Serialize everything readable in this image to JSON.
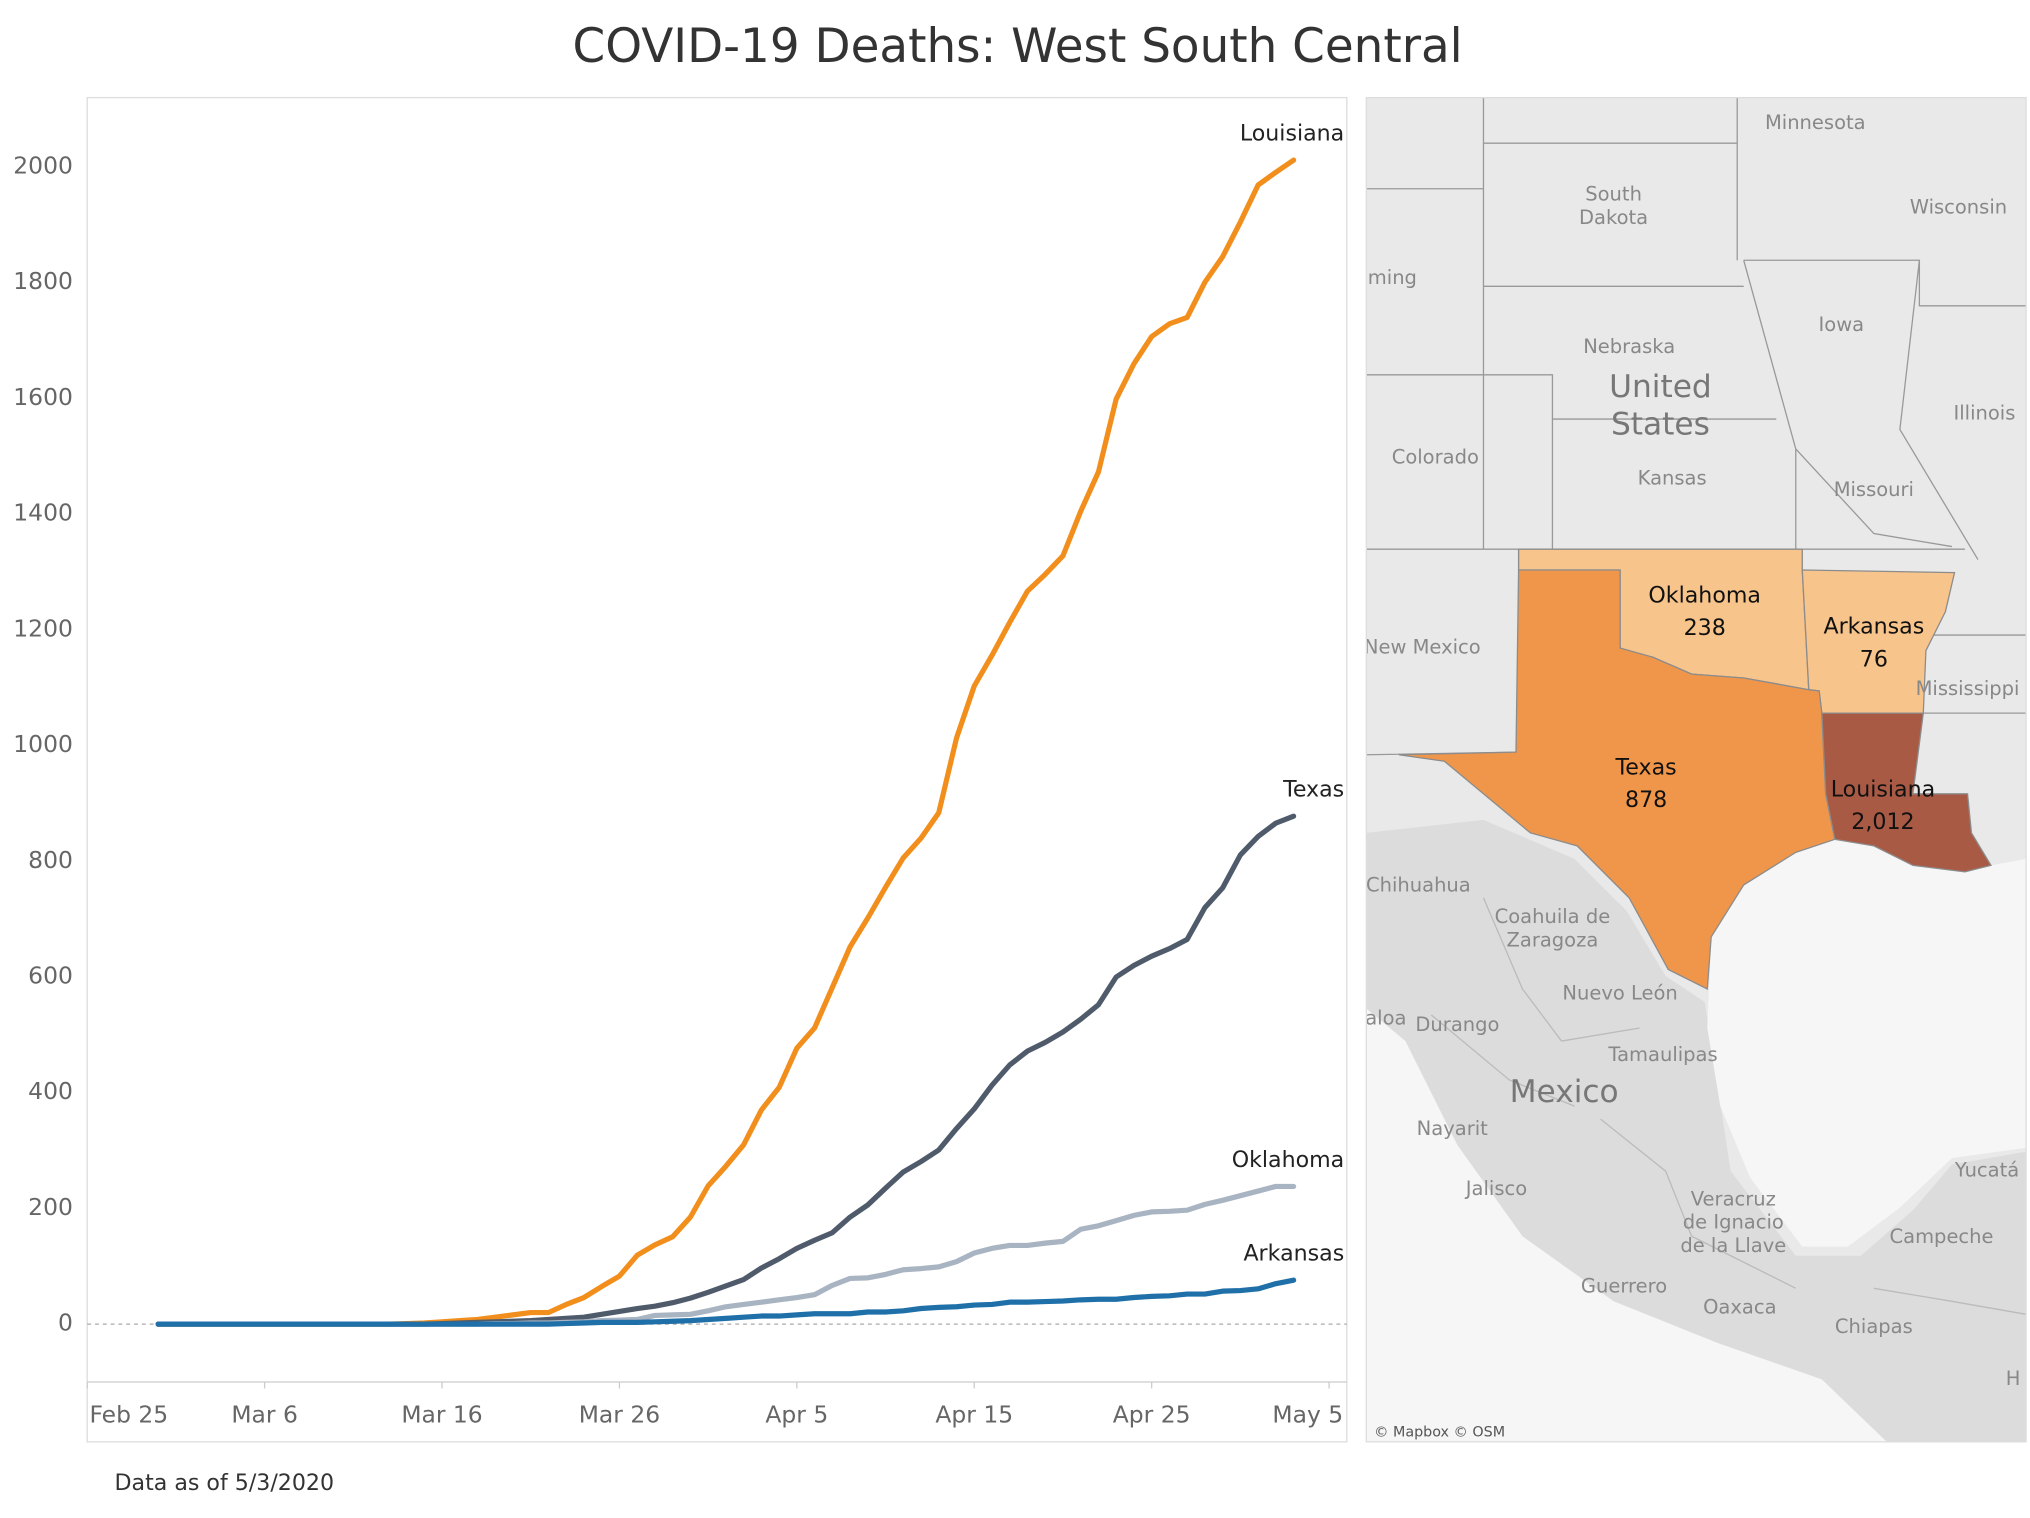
{
  "chart_data": {
    "type": "line",
    "title": "COVID-19 Deaths: West South Central",
    "footnote": "Data as of 5/3/2020",
    "x": [
      "Feb 29",
      "Mar 1",
      "Mar 2",
      "Mar 3",
      "Mar 4",
      "Mar 5",
      "Mar 6",
      "Mar 7",
      "Mar 8",
      "Mar 9",
      "Mar 10",
      "Mar 11",
      "Mar 12",
      "Mar 13",
      "Mar 14",
      "Mar 15",
      "Mar 16",
      "Mar 17",
      "Mar 18",
      "Mar 19",
      "Mar 20",
      "Mar 21",
      "Mar 22",
      "Mar 23",
      "Mar 24",
      "Mar 25",
      "Mar 26",
      "Mar 27",
      "Mar 28",
      "Mar 29",
      "Mar 30",
      "Mar 31",
      "Apr 1",
      "Apr 2",
      "Apr 3",
      "Apr 4",
      "Apr 5",
      "Apr 6",
      "Apr 7",
      "Apr 8",
      "Apr 9",
      "Apr 10",
      "Apr 11",
      "Apr 12",
      "Apr 13",
      "Apr 14",
      "Apr 15",
      "Apr 16",
      "Apr 17",
      "Apr 18",
      "Apr 19",
      "Apr 20",
      "Apr 21",
      "Apr 22",
      "Apr 23",
      "Apr 24",
      "Apr 25",
      "Apr 26",
      "Apr 27",
      "Apr 28",
      "Apr 29",
      "Apr 30",
      "May 1",
      "May 2",
      "May 3"
    ],
    "series": [
      {
        "name": "Louisiana",
        "color": "#f28e1c",
        "values": [
          0,
          0,
          0,
          0,
          0,
          0,
          0,
          0,
          0,
          0,
          0,
          0,
          0,
          0,
          1,
          2,
          4,
          6,
          8,
          12,
          16,
          20,
          20,
          34,
          46,
          65,
          83,
          119,
          137,
          151,
          185,
          239,
          273,
          310,
          370,
          409,
          477,
          512,
          582,
          652,
          702,
          755,
          806,
          840,
          884,
          1013,
          1103,
          1156,
          1213,
          1267,
          1296,
          1328,
          1405,
          1473,
          1599,
          1660,
          1707,
          1729,
          1740,
          1801,
          1845,
          1905,
          1969,
          1991,
          2012
        ]
      },
      {
        "name": "Texas",
        "color": "#4f5b6b",
        "values": [
          0,
          0,
          0,
          0,
          0,
          0,
          0,
          0,
          0,
          0,
          0,
          0,
          0,
          0,
          0,
          0,
          1,
          2,
          3,
          4,
          5,
          6,
          8,
          10,
          12,
          17,
          22,
          27,
          31,
          37,
          45,
          55,
          66,
          77,
          97,
          113,
          131,
          145,
          158,
          185,
          206,
          235,
          263,
          281,
          301,
          338,
          372,
          413,
          448,
          472,
          487,
          505,
          527,
          552,
          600,
          620,
          636,
          649,
          665,
          720,
          754,
          811,
          843,
          866,
          878
        ]
      },
      {
        "name": "Oklahoma",
        "color": "#a9b4c2",
        "values": [
          0,
          0,
          0,
          0,
          0,
          0,
          0,
          0,
          0,
          0,
          0,
          0,
          0,
          0,
          0,
          0,
          0,
          0,
          0,
          1,
          1,
          2,
          2,
          3,
          4,
          6,
          7,
          8,
          15,
          16,
          17,
          23,
          30,
          34,
          38,
          42,
          46,
          51,
          67,
          79,
          80,
          86,
          94,
          96,
          99,
          108,
          123,
          131,
          136,
          136,
          140,
          143,
          164,
          170,
          179,
          188,
          194,
          195,
          197,
          207,
          214,
          222,
          230,
          238,
          238
        ]
      },
      {
        "name": "Arkansas",
        "color": "#1f6fa8",
        "values": [
          0,
          0,
          0,
          0,
          0,
          0,
          0,
          0,
          0,
          0,
          0,
          0,
          0,
          0,
          0,
          0,
          0,
          0,
          0,
          0,
          0,
          0,
          0,
          1,
          2,
          3,
          3,
          3,
          4,
          5,
          6,
          8,
          10,
          12,
          14,
          14,
          16,
          18,
          18,
          18,
          21,
          21,
          23,
          27,
          29,
          30,
          33,
          34,
          38,
          38,
          39,
          40,
          42,
          43,
          43,
          46,
          48,
          49,
          52,
          52,
          57,
          58,
          61,
          70,
          76
        ]
      }
    ],
    "xlim": [
      "Feb 25",
      "May 6"
    ],
    "xticks": [
      "Feb 25",
      "Mar 6",
      "Mar 16",
      "Mar 26",
      "Apr 5",
      "Apr 15",
      "Apr 25",
      "May 5"
    ],
    "ylim": [
      -100,
      2120
    ],
    "yticks": [
      0,
      200,
      400,
      600,
      800,
      1000,
      1200,
      1400,
      1600,
      1800,
      2000
    ]
  },
  "map": {
    "regions": [
      {
        "name": "Oklahoma",
        "value": "238",
        "color": "#f7c48b"
      },
      {
        "name": "Arkansas",
        "value": "76",
        "color": "#f7c48b"
      },
      {
        "name": "Texas",
        "value": "878",
        "color": "#f0964b"
      },
      {
        "name": "Louisiana",
        "value": "2,012",
        "color": "#a85a45"
      }
    ],
    "labels": [
      [
        "Minnesota"
      ],
      [
        "South",
        "Dakota"
      ],
      [
        "Wisconsin"
      ],
      [
        "ming"
      ],
      [
        "Iowa"
      ],
      [
        "Nebraska"
      ],
      [
        "United",
        "States"
      ],
      [
        "Illinois"
      ],
      [
        "Colorado"
      ],
      [
        "Kansas"
      ],
      [
        "Missouri"
      ],
      [
        "New Mexico"
      ],
      [
        "Mississippi"
      ],
      [
        "Chihuahua"
      ],
      [
        "Coahuila de",
        "Zaragoza"
      ],
      [
        "Nuevo León"
      ],
      [
        "aloa"
      ],
      [
        "Durango"
      ],
      [
        "Tamaulipas"
      ],
      [
        "Mexico"
      ],
      [
        "Nayarit"
      ],
      [
        "Jalisco"
      ],
      [
        "Veracruz",
        "de Ignacio",
        "de la Llave"
      ],
      [
        "Yucatá"
      ],
      [
        "Campeche"
      ],
      [
        "Guerrero"
      ],
      [
        "Oaxaca"
      ],
      [
        "Chiapas"
      ],
      [
        "H"
      ]
    ],
    "attribution": "© Mapbox © OSM"
  }
}
